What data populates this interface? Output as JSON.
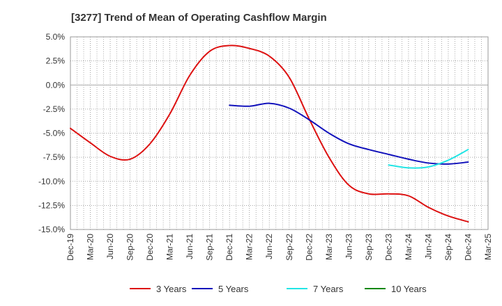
{
  "chart_data": {
    "type": "line",
    "title": "[3277]  Trend of Mean of Operating Cashflow Margin",
    "xlabel": "",
    "ylabel": "",
    "ylim": [
      -15.0,
      5.0
    ],
    "y_ticks": [
      5.0,
      2.5,
      0.0,
      -2.5,
      -5.0,
      -7.5,
      -10.0,
      -12.5,
      -15.0
    ],
    "y_tick_labels": [
      "5.0%",
      "2.5%",
      "0.0%",
      "-2.5%",
      "-5.0%",
      "-7.5%",
      "-10.0%",
      "-12.5%",
      "-15.0%"
    ],
    "x_tick_labels": [
      "Dec-19",
      "Mar-20",
      "Jun-20",
      "Sep-20",
      "Dec-20",
      "Mar-21",
      "Jun-21",
      "Sep-21",
      "Dec-21",
      "Mar-22",
      "Jun-22",
      "Sep-22",
      "Dec-22",
      "Mar-23",
      "Jun-23",
      "Sep-23",
      "Dec-23",
      "Mar-24",
      "Jun-24",
      "Sep-24",
      "Dec-24",
      "Mar-25"
    ],
    "grid": true,
    "legend_position": "bottom",
    "series": [
      {
        "name": "3 Years",
        "color": "#dd1111",
        "points": [
          [
            "Dec-19",
            -4.5
          ],
          [
            "Mar-20",
            -6.0
          ],
          [
            "Jun-20",
            -7.4
          ],
          [
            "Sep-20",
            -7.7
          ],
          [
            "Dec-20",
            -6.1
          ],
          [
            "Mar-21",
            -3.0
          ],
          [
            "Jun-21",
            1.0
          ],
          [
            "Sep-21",
            3.5
          ],
          [
            "Dec-21",
            4.1
          ],
          [
            "Mar-22",
            3.8
          ],
          [
            "Jun-22",
            3.0
          ],
          [
            "Sep-22",
            0.8
          ],
          [
            "Dec-22",
            -3.5
          ],
          [
            "Mar-23",
            -7.5
          ],
          [
            "Jun-23",
            -10.4
          ],
          [
            "Sep-23",
            -11.3
          ],
          [
            "Dec-23",
            -11.3
          ],
          [
            "Mar-24",
            -11.5
          ],
          [
            "Jun-24",
            -12.7
          ],
          [
            "Sep-24",
            -13.6
          ],
          [
            "Dec-24",
            -14.2
          ]
        ]
      },
      {
        "name": "5 Years",
        "color": "#1111bb",
        "points": [
          [
            "Dec-21",
            -2.1
          ],
          [
            "Mar-22",
            -2.2
          ],
          [
            "Jun-22",
            -1.9
          ],
          [
            "Sep-22",
            -2.4
          ],
          [
            "Dec-22",
            -3.6
          ],
          [
            "Mar-23",
            -5.0
          ],
          [
            "Jun-23",
            -6.1
          ],
          [
            "Sep-23",
            -6.7
          ],
          [
            "Dec-23",
            -7.2
          ],
          [
            "Mar-24",
            -7.7
          ],
          [
            "Jun-24",
            -8.1
          ],
          [
            "Sep-24",
            -8.2
          ],
          [
            "Dec-24",
            -8.0
          ]
        ]
      },
      {
        "name": "7 Years",
        "color": "#22e5e5",
        "points": [
          [
            "Dec-23",
            -8.3
          ],
          [
            "Mar-24",
            -8.6
          ],
          [
            "Jun-24",
            -8.5
          ],
          [
            "Sep-24",
            -7.8
          ],
          [
            "Dec-24",
            -6.7
          ]
        ]
      },
      {
        "name": "10 Years",
        "color": "#118811",
        "points": []
      }
    ]
  }
}
